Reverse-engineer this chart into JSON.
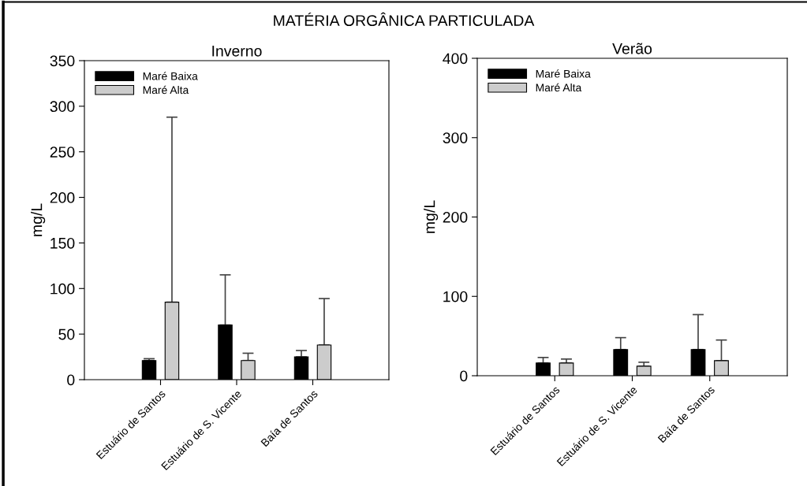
{
  "chart_data": [
    {
      "type": "bar",
      "title": "MATÉRIA ORGÂNICA PARTICULADA",
      "subtitle": "Inverno",
      "ylabel": "mg/L",
      "categories": [
        "Estuário de Santos",
        "Estuário de S. Vicente",
        "Baía de Santos"
      ],
      "series": [
        {
          "name": "Maré Baixa",
          "color": "#000000",
          "values": [
            21,
            60,
            25
          ],
          "errors": [
            [
              21,
              23
            ],
            [
              60,
              115
            ],
            [
              25,
              32
            ]
          ]
        },
        {
          "name": "Maré Alta",
          "color": "#cccccc",
          "values": [
            85,
            21,
            38
          ],
          "errors": [
            [
              85,
              288
            ],
            [
              21,
              29
            ],
            [
              38,
              89
            ]
          ]
        }
      ],
      "ylim": [
        0,
        350
      ],
      "yticks": [
        0,
        50,
        100,
        150,
        200,
        250,
        300,
        350
      ],
      "legend": "top left",
      "grid": false
    },
    {
      "type": "bar",
      "subtitle": "Verão",
      "ylabel": "mg/L",
      "categories": [
        "Estuário de Santos",
        "Estuário de S. Vicente",
        "Baía de Santos"
      ],
      "series": [
        {
          "name": "Maré Baixa",
          "color": "#000000",
          "values": [
            16,
            33,
            33
          ],
          "errors": [
            [
              16,
              23
            ],
            [
              33,
              48
            ],
            [
              33,
              77
            ]
          ]
        },
        {
          "name": "Maré Alta",
          "color": "#cccccc",
          "values": [
            16,
            12,
            19
          ],
          "errors": [
            [
              16,
              21
            ],
            [
              12,
              17
            ],
            [
              19,
              45
            ]
          ]
        }
      ],
      "ylim": [
        0,
        400
      ],
      "yticks": [
        0,
        100,
        200,
        300,
        400
      ],
      "legend": "top left",
      "grid": false
    }
  ]
}
